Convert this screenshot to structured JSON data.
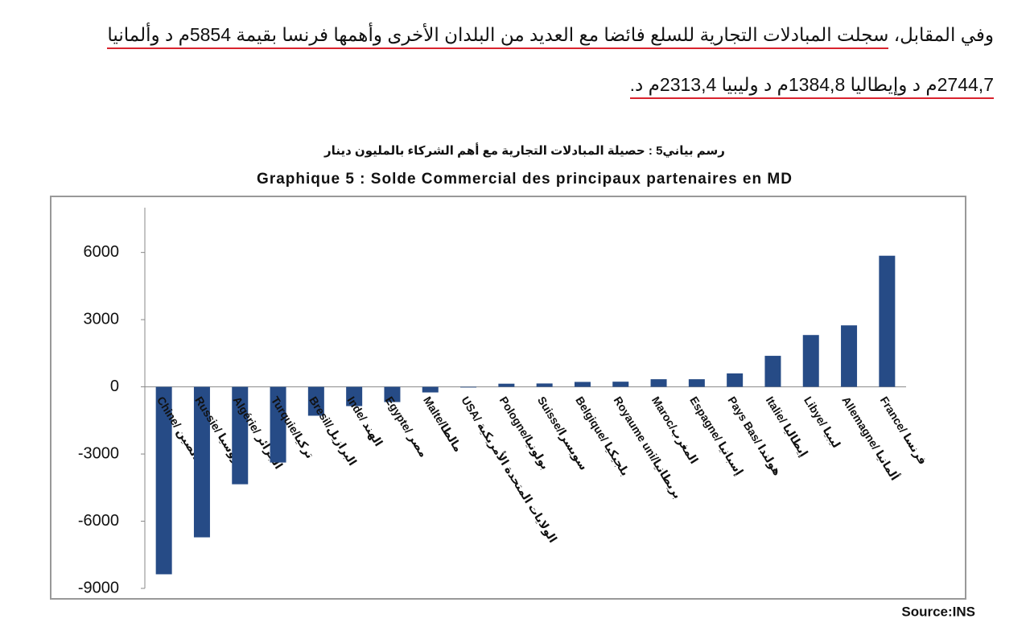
{
  "paragraph": {
    "lines": [
      {
        "plain": "وفي المقابل، ",
        "underlined": "سجلت المبادلات التجارية للسلع فائضا مع العديد من البلدان الأخرى وأهمها فرنسا بقيمة 5854م د وألمانيا"
      },
      {
        "underlined": "2744,7م د وإيطاليا 1384,8م د وليبيا 2313,4م د."
      }
    ]
  },
  "chart_data": {
    "type": "bar",
    "subtitle": "رسم بياني5 : حصيلة المبادلات التجارية مع أهم الشركاء بالمليون دينار",
    "title": "Graphique 5 : Solde Commercial des principaux partenaires en MD",
    "source": "Source:INS",
    "categories": [
      "Chine/ الصين",
      "Russie/ روسيا",
      "Algérie/ الجزائر",
      "Turquie/تركيا",
      "Bresil/البرازيل",
      "Inde/ الهند",
      "Egypte/ مصر",
      "Malte/مالطا",
      "USA/ الولايات المتحدة الأمريكية",
      "Pologne/بولونيا",
      "Suisse/سويسرا",
      "Belgique/ بلجيكيا",
      "Royaume uni/بريطانيا",
      "Maroc/المغرب",
      "Espagne/ إسبانيا",
      "Pays Bas/ هولندا",
      "Italie/ إيطاليا",
      "Libye/ ليبيا",
      "Allemagne/ ألمانيا",
      "France/ فرنسا"
    ],
    "values": [
      -8370,
      -6720,
      -4350,
      -3380,
      -1290,
      -860,
      -680,
      -250,
      -30,
      140,
      150,
      220,
      230,
      340,
      340,
      600,
      1384.8,
      2313.4,
      2744.7,
      5854
    ],
    "color": "#264b86",
    "ylim": [
      -9000,
      8000
    ],
    "yticks": [
      -9000,
      -6000,
      -3000,
      0,
      3000,
      6000
    ]
  }
}
